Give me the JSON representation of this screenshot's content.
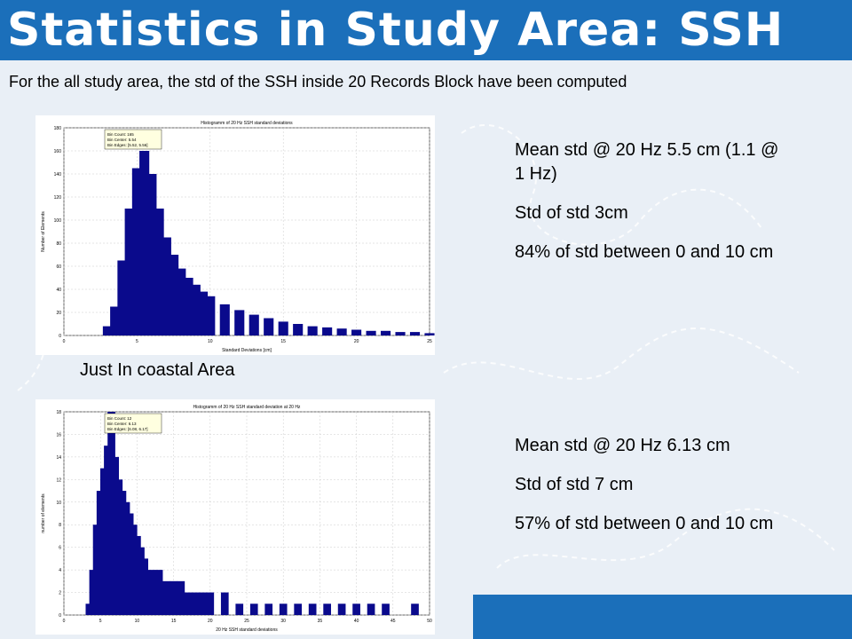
{
  "slide": {
    "title": "Statistics in Study Area: SSH",
    "subtitle": "For the all study area, the std of the SSH inside 20 Records Block have been computed",
    "coastal_label": "Just In coastal Area",
    "stats_all": [
      "Mean std @ 20 Hz 5.5 cm (1.1 @ 1 Hz)",
      "Std of std 3cm",
      "84% of std between 0 and 10 cm"
    ],
    "stats_coastal": [
      "Mean std @ 20 Hz 6.13 cm",
      "Std of std 7 cm",
      "57% of std between 0 and 10 cm"
    ]
  },
  "colors": {
    "header": "#1b6fba",
    "bars": "#0a0a8c",
    "background": "#e9eff6"
  },
  "chart_data": [
    {
      "type": "bar",
      "title": "Histogramm of 20 Hz SSH standard deviations",
      "xlabel": "Standard Deviations [cm]",
      "ylabel": "Number of Elements",
      "xlim": [
        0,
        25
      ],
      "ylim": [
        0,
        180
      ],
      "xticks": [
        0,
        5,
        10,
        15,
        20,
        25
      ],
      "yticks": [
        0,
        20,
        40,
        60,
        80,
        100,
        120,
        140,
        160,
        180
      ],
      "grid": true,
      "datatip": [
        "Bin Count: 165",
        "Bin Center: 5.54",
        "Bin Edges: [5.52, 5.56]"
      ],
      "x": [
        2.5,
        3.0,
        3.5,
        4.0,
        4.5,
        5.0,
        5.5,
        6.0,
        6.5,
        7.0,
        7.5,
        8.0,
        8.5,
        9.0,
        9.5,
        10.0,
        11.0,
        12.0,
        13.0,
        14.0,
        15.0,
        16.0,
        17.0,
        18.0,
        19.0,
        20.0,
        21.0,
        22.0,
        23.0,
        24.0,
        25.0
      ],
      "values": [
        0,
        8,
        25,
        65,
        110,
        145,
        160,
        140,
        110,
        85,
        70,
        58,
        50,
        44,
        38,
        34,
        27,
        22,
        18,
        15,
        12,
        10,
        8,
        7,
        6,
        5,
        4,
        4,
        3,
        3,
        2
      ]
    },
    {
      "type": "bar",
      "title": "Histogramm of 20 Hz SSH standard deviation at 20 Hz",
      "xlabel": "20 Hz SSH standard deviations",
      "ylabel": "number of elements",
      "xlim": [
        0,
        50
      ],
      "ylim": [
        0,
        18
      ],
      "xticks": [
        0,
        5,
        10,
        15,
        20,
        25,
        30,
        35,
        40,
        45,
        50
      ],
      "yticks": [
        0,
        2,
        4,
        6,
        8,
        10,
        12,
        14,
        16,
        18
      ],
      "grid": true,
      "datatip": [
        "Bin Count: 12",
        "Bin Center: 6.13",
        "Bin Edges: [6.08, 6.17]"
      ],
      "x": [
        3.5,
        4,
        4.5,
        5,
        5.5,
        6,
        6.5,
        7,
        7.5,
        8,
        8.5,
        9,
        9.5,
        10,
        10.5,
        11,
        12,
        13,
        14,
        15,
        16,
        17,
        18,
        19,
        20,
        22,
        24,
        26,
        28,
        30,
        32,
        34,
        36,
        38,
        40,
        42,
        44,
        46,
        48
      ],
      "values": [
        1,
        4,
        8,
        11,
        13,
        15,
        18,
        14,
        12,
        11,
        10,
        9,
        8,
        7,
        6,
        5,
        4,
        4,
        3,
        3,
        3,
        2,
        2,
        2,
        2,
        2,
        1,
        1,
        1,
        1,
        1,
        1,
        1,
        1,
        1,
        1,
        1,
        0,
        1
      ]
    }
  ]
}
